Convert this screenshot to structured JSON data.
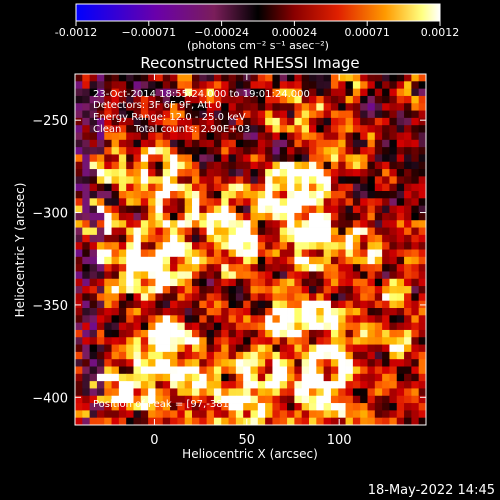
{
  "chart_data": {
    "type": "heatmap",
    "title": "Reconstructed RHESSI Image",
    "xlabel": "Heliocentric X (arcsec)",
    "ylabel": "Heliocentric Y (arcsec)",
    "x_ticks": [
      0,
      50,
      100
    ],
    "y_ticks": [
      -250,
      -300,
      -350,
      -400
    ],
    "xlim": [
      -43,
      147
    ],
    "ylim": [
      -415,
      -225
    ],
    "colorbar": {
      "ticks": [
        "-0.0012",
        "−0.00071",
        "−0.00024",
        "0.00024",
        "0.00071",
        "0.0012"
      ],
      "range": [
        -0.0012,
        0.0012
      ],
      "unit_label": "(photons cm⁻² s⁻¹ asec⁻²)"
    },
    "colormap": [
      "#0000ff",
      "#6a00aa",
      "#7a1e5a",
      "#000000",
      "#7a0000",
      "#d40000",
      "#ff6400",
      "#ffb400",
      "#ffff66",
      "#ffffff"
    ],
    "annotations": {
      "time_range": "23-Oct-2014 18:55:24.000 to 19:01:24.000",
      "detectors": "Detectors: 3F 6F 9F, Att 0",
      "energy": "Energy Range: 12.0 - 25.0 keV",
      "clean": "Clean    Total counts: 2.90E+03",
      "peak": "Position of Peak = [97,-381]"
    },
    "grid": false
  },
  "footer": {
    "date": "18-May-2022 14:45"
  }
}
